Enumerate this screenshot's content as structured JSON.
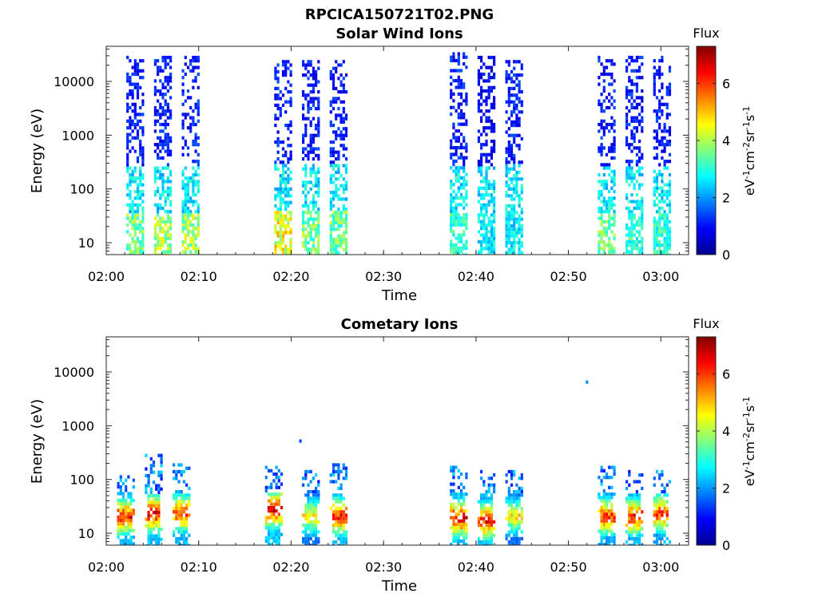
{
  "figure_title": "RPCICA150721T02.PNG",
  "chart_data": [
    {
      "type": "heatmap",
      "title": "Solar Wind Ions",
      "xlabel": "Time",
      "ylabel": "Energy (eV)",
      "y_scale": "log",
      "ylim": [
        6,
        45000
      ],
      "x_range": [
        "02:00",
        "03:03"
      ],
      "x_ticks": [
        "02:00",
        "02:10",
        "02:20",
        "02:30",
        "02:40",
        "02:50",
        "03:00"
      ],
      "y_ticks": [
        "10",
        "100",
        "1000",
        "10000"
      ],
      "colorbar": {
        "title": "Flux",
        "label": "eV-1cm-2sr-1s-1",
        "ticks": [
          "0",
          "2",
          "4",
          "6"
        ],
        "range": [
          0,
          7.3
        ],
        "colormap": "jet"
      },
      "bursts": [
        {
          "time": "02:03",
          "energy_min": 6,
          "energy_max": 30000,
          "low_energy_flux": 4.0,
          "high_energy_flux": 1.0
        },
        {
          "time": "02:06",
          "energy_min": 6,
          "energy_max": 30000,
          "low_energy_flux": 4.5,
          "high_energy_flux": 1.0
        },
        {
          "time": "02:09",
          "energy_min": 6,
          "energy_max": 30000,
          "low_energy_flux": 4.5,
          "high_energy_flux": 1.0
        },
        {
          "time": "02:19",
          "energy_min": 6,
          "energy_max": 25000,
          "low_energy_flux": 5.0,
          "high_energy_flux": 1.0
        },
        {
          "time": "02:22",
          "energy_min": 6,
          "energy_max": 25000,
          "low_energy_flux": 4.0,
          "high_energy_flux": 1.0
        },
        {
          "time": "02:25",
          "energy_min": 6,
          "energy_max": 25000,
          "low_energy_flux": 4.0,
          "high_energy_flux": 1.0
        },
        {
          "time": "02:38",
          "energy_min": 6,
          "energy_max": 35000,
          "low_energy_flux": 3.5,
          "high_energy_flux": 1.0
        },
        {
          "time": "02:41",
          "energy_min": 6,
          "energy_max": 30000,
          "low_energy_flux": 3.0,
          "high_energy_flux": 0.8
        },
        {
          "time": "02:44",
          "energy_min": 6,
          "energy_max": 25000,
          "low_energy_flux": 3.0,
          "high_energy_flux": 1.0
        },
        {
          "time": "02:54",
          "energy_min": 6,
          "energy_max": 30000,
          "low_energy_flux": 4.0,
          "high_energy_flux": 1.0
        },
        {
          "time": "02:57",
          "energy_min": 6,
          "energy_max": 30000,
          "low_energy_flux": 3.5,
          "high_energy_flux": 1.0
        },
        {
          "time": "03:00",
          "energy_min": 6,
          "energy_max": 30000,
          "low_energy_flux": 3.5,
          "high_energy_flux": 1.0
        }
      ]
    },
    {
      "type": "heatmap",
      "title": "Cometary Ions",
      "xlabel": "Time",
      "ylabel": "Energy (eV)",
      "y_scale": "log",
      "ylim": [
        6,
        45000
      ],
      "x_range": [
        "02:00",
        "03:03"
      ],
      "x_ticks": [
        "02:00",
        "02:10",
        "02:20",
        "02:30",
        "02:40",
        "02:50",
        "03:00"
      ],
      "y_ticks": [
        "10",
        "100",
        "1000",
        "10000"
      ],
      "colorbar": {
        "title": "Flux",
        "label": "eV-1cm-2sr-1s-1",
        "ticks": [
          "0",
          "2",
          "4",
          "6"
        ],
        "range": [
          0,
          7.3
        ],
        "colormap": "jet"
      },
      "bursts": [
        {
          "time": "02:02",
          "energy_min": 6,
          "energy_max": 120,
          "peak_energy": 22,
          "peak_flux": 6.5
        },
        {
          "time": "02:05",
          "energy_min": 6,
          "energy_max": 300,
          "peak_energy": 25,
          "peak_flux": 6.8
        },
        {
          "time": "02:08",
          "energy_min": 6,
          "energy_max": 200,
          "peak_energy": 25,
          "peak_flux": 6.3
        },
        {
          "time": "02:18",
          "energy_min": 6,
          "energy_max": 180,
          "peak_energy": 30,
          "peak_flux": 7.0
        },
        {
          "time": "02:22",
          "energy_min": 6,
          "energy_max": 150,
          "peak_energy": 22,
          "peak_flux": 5.0
        },
        {
          "time": "02:25",
          "energy_min": 6,
          "energy_max": 200,
          "peak_energy": 22,
          "peak_flux": 6.5
        },
        {
          "time": "02:38",
          "energy_min": 6,
          "energy_max": 180,
          "peak_energy": 20,
          "peak_flux": 6.8
        },
        {
          "time": "02:41",
          "energy_min": 6,
          "energy_max": 150,
          "peak_energy": 18,
          "peak_flux": 6.5
        },
        {
          "time": "02:44",
          "energy_min": 6,
          "energy_max": 150,
          "peak_energy": 22,
          "peak_flux": 5.0
        },
        {
          "time": "02:54",
          "energy_min": 6,
          "energy_max": 180,
          "peak_energy": 22,
          "peak_flux": 6.3
        },
        {
          "time": "02:57",
          "energy_min": 6,
          "energy_max": 150,
          "peak_energy": 22,
          "peak_flux": 6.5
        },
        {
          "time": "03:00",
          "energy_min": 6,
          "energy_max": 150,
          "peak_energy": 25,
          "peak_flux": 6.3
        }
      ],
      "isolated_points": [
        {
          "time": "02:21",
          "energy": 520,
          "flux": 1.5
        },
        {
          "time": "02:52",
          "energy": 6500,
          "flux": 2.0
        }
      ]
    }
  ]
}
